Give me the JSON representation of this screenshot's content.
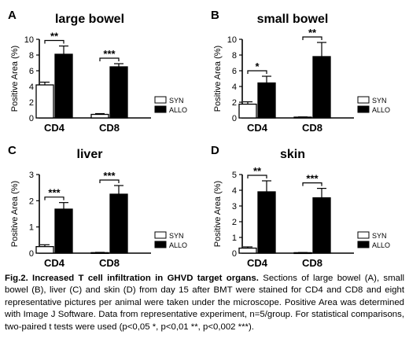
{
  "chart_data": [
    {
      "type": "bar",
      "panel": "A",
      "title": "large bowel",
      "ylabel": "Positive Area (%)",
      "ylim": [
        0,
        10
      ],
      "yticks": [
        "0",
        "2",
        "4",
        "6",
        "8",
        "10"
      ],
      "categories": [
        "CD4",
        "CD8"
      ],
      "series": [
        {
          "name": "SYN",
          "values": [
            4.2,
            0.45
          ],
          "errors": [
            0.35,
            0.1
          ]
        },
        {
          "name": "ALLO",
          "values": [
            8.1,
            6.5
          ],
          "errors": [
            1.05,
            0.4
          ]
        }
      ],
      "significance": [
        "**",
        "***"
      ],
      "legend": "right"
    },
    {
      "type": "bar",
      "panel": "B",
      "title": "small bowel",
      "ylabel": "Positive Area (%)",
      "ylim": [
        0,
        10
      ],
      "yticks": [
        "0",
        "2",
        "4",
        "6",
        "8",
        "10"
      ],
      "categories": [
        "CD4",
        "CD8"
      ],
      "series": [
        {
          "name": "SYN",
          "values": [
            1.75,
            0.1
          ],
          "errors": [
            0.3,
            0.03
          ]
        },
        {
          "name": "ALLO",
          "values": [
            4.45,
            7.8
          ],
          "errors": [
            0.85,
            1.8
          ]
        }
      ],
      "significance": [
        "*",
        "**"
      ],
      "legend": "right"
    },
    {
      "type": "bar",
      "panel": "C",
      "title": "liver",
      "ylabel": "Positive Area (%)",
      "ylim": [
        0,
        3
      ],
      "yticks": [
        "0",
        "1",
        "2",
        "3"
      ],
      "categories": [
        "CD4",
        "CD8"
      ],
      "series": [
        {
          "name": "SYN",
          "values": [
            0.25,
            0.02
          ],
          "errors": [
            0.07,
            0.01
          ]
        },
        {
          "name": "ALLO",
          "values": [
            1.68,
            2.25
          ],
          "errors": [
            0.25,
            0.33
          ]
        }
      ],
      "significance": [
        "***",
        "***"
      ],
      "legend": "right"
    },
    {
      "type": "bar",
      "panel": "D",
      "title": "skin",
      "ylabel": "Positive Area (%)",
      "ylim": [
        0,
        5
      ],
      "yticks": [
        "0",
        "1",
        "2",
        "3",
        "4",
        "5"
      ],
      "categories": [
        "CD4",
        "CD8"
      ],
      "series": [
        {
          "name": "SYN",
          "values": [
            0.32,
            0.03
          ],
          "errors": [
            0.08,
            0.01
          ]
        },
        {
          "name": "ALLO",
          "values": [
            3.9,
            3.52
          ],
          "errors": [
            0.7,
            0.6
          ]
        }
      ],
      "significance": [
        "**",
        "***"
      ],
      "legend": "right"
    }
  ],
  "colors": {
    "syn_fill": "#ffffff",
    "allo_fill": "#000000",
    "axis": "#000000"
  },
  "caption": {
    "title": "Fig.2. Increased T cell infiltration in GHVD target organs.",
    "body": "Sections of large bowel (A), small bowel (B), liver (C) and skin (D) from day 15 after BMT were stained for CD4 and CD8 and eight representative pictures per animal were taken under the microscope. Positive Area was determined with Image J Software. Data from representative experiment, n=5/group. For statistical comparisons, two-paired t tests were used (p<0,05 *, p<0,01 **, p<0,002 ***)."
  }
}
